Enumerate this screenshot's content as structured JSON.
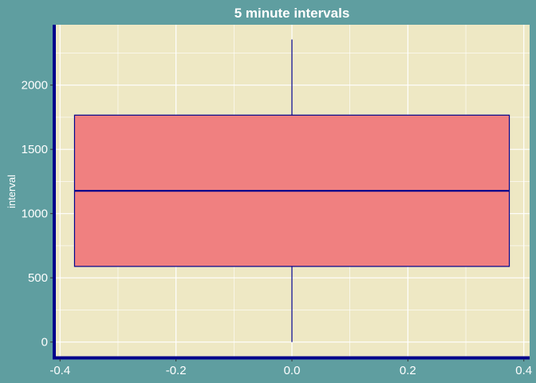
{
  "chart_data": {
    "type": "boxplot",
    "title": "5 minute intervals",
    "xlabel": "",
    "ylabel": "interval",
    "xlim": [
      -0.41,
      0.41
    ],
    "ylim": [
      -120,
      2470
    ],
    "x_ticks": [
      -0.4,
      -0.2,
      0.0,
      0.2,
      0.4
    ],
    "x_tick_labels": [
      "-0.4",
      "-0.2",
      "0.0",
      "0.2",
      "0.4"
    ],
    "y_ticks": [
      0,
      500,
      1000,
      1500,
      2000
    ],
    "y_tick_labels": [
      "0",
      "500",
      "1000",
      "1500",
      "2000"
    ],
    "grid": true,
    "box": {
      "x_left": -0.375,
      "x_right": 0.375,
      "min": 0,
      "q1": 588.75,
      "median": 1177.5,
      "q3": 1766.25,
      "max": 2355
    },
    "colors": {
      "background": "#5f9ea0",
      "panel": "#eee8c4",
      "grid": "#ffffff",
      "box_fill": "#f08080",
      "box_line": "#00008b",
      "axis_line": "#00008b",
      "text": "#ffffff"
    }
  }
}
